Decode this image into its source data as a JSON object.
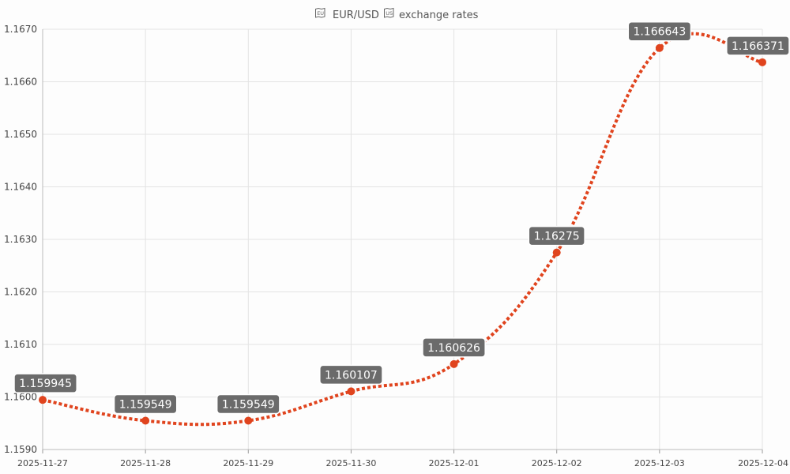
{
  "title": {
    "flag_left": "EU",
    "text": "EUR/USD",
    "flag_right": "US",
    "suffix": "exchange rates"
  },
  "colors": {
    "line": "#e0441e",
    "label_bg": "#6b6b6b",
    "label_text": "#ffffff",
    "grid": "#e3e3e3"
  },
  "chart_data": {
    "type": "line",
    "title": "EUR/USD exchange rates",
    "xlabel": "",
    "ylabel": "",
    "x": [
      "2025-11-27",
      "2025-11-28",
      "2025-11-29",
      "2025-11-30",
      "2025-12-01",
      "2025-12-02",
      "2025-12-03",
      "2025-12-04"
    ],
    "series": [
      {
        "values": [
          1.159945,
          1.159549,
          1.159549,
          1.160107,
          1.160626,
          1.16275,
          1.166643,
          1.166371
        ],
        "labels": [
          "1.159945",
          "1.159549",
          "1.159549",
          "1.160107",
          "1.160626",
          "1.16275",
          "1.166643",
          "1.166371"
        ],
        "line_style": "dotted",
        "smooth": true
      }
    ],
    "ylim": [
      1.159,
      1.167
    ],
    "yticks": [
      "1.1590",
      "1.1600",
      "1.1610",
      "1.1620",
      "1.1630",
      "1.1640",
      "1.1650",
      "1.1660",
      "1.1670"
    ],
    "xticks": [
      "2025-11-27",
      "2025-11-28",
      "2025-11-29",
      "2025-11-30",
      "2025-12-01",
      "2025-12-02",
      "2025-12-03",
      "2025-12-04"
    ],
    "grid": true,
    "legend": "none"
  }
}
